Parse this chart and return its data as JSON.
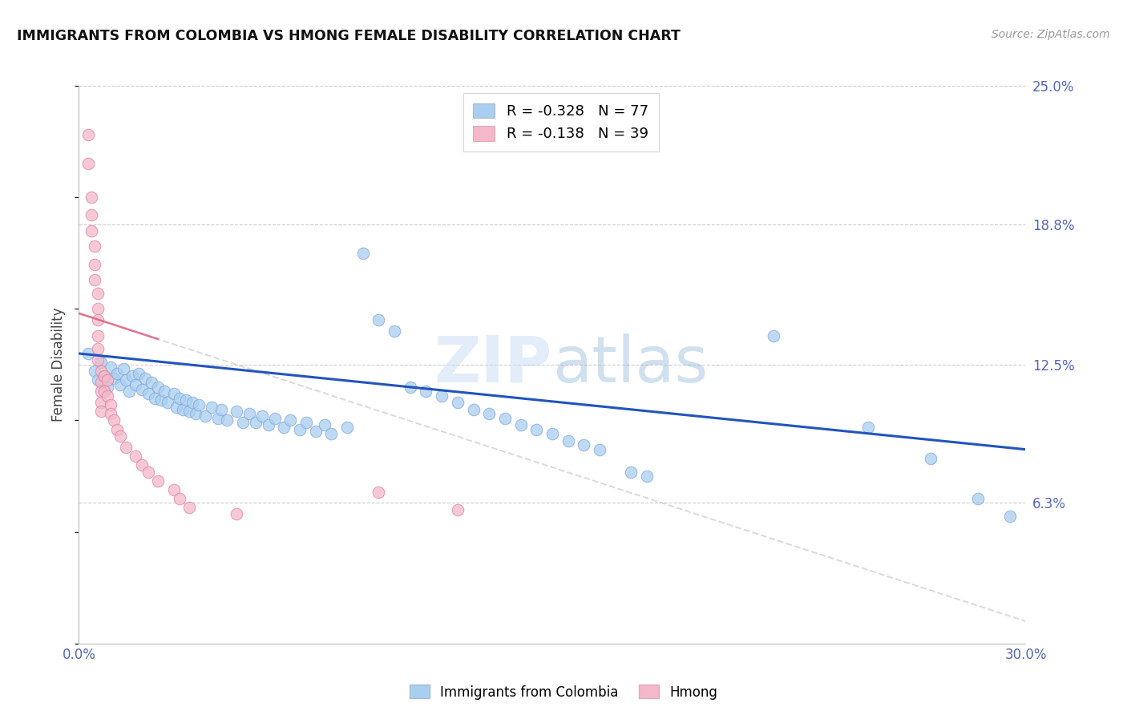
{
  "title": "IMMIGRANTS FROM COLOMBIA VS HMONG FEMALE DISABILITY CORRELATION CHART",
  "source": "Source: ZipAtlas.com",
  "ylabel": "Female Disability",
  "watermark": "ZIPatlas",
  "x_min": 0.0,
  "x_max": 0.3,
  "y_min": 0.0,
  "y_max": 0.25,
  "x_ticks": [
    0.0,
    0.05,
    0.1,
    0.15,
    0.2,
    0.25,
    0.3
  ],
  "y_tick_labels_right": [
    "6.3%",
    "12.5%",
    "18.8%",
    "25.0%"
  ],
  "y_ticks_right": [
    0.063,
    0.125,
    0.188,
    0.25
  ],
  "colombia_R": "-0.328",
  "colombia_N": "77",
  "hmong_R": "-0.138",
  "hmong_N": "39",
  "colombia_color": "#a8cef0",
  "hmong_color": "#f5b8c8",
  "colombia_line_color": "#2255bb",
  "hmong_line_color": "#cccccc",
  "colombia_scatter": [
    [
      0.003,
      0.13
    ],
    [
      0.005,
      0.122
    ],
    [
      0.006,
      0.118
    ],
    [
      0.007,
      0.126
    ],
    [
      0.008,
      0.12
    ],
    [
      0.009,
      0.115
    ],
    [
      0.01,
      0.124
    ],
    [
      0.011,
      0.119
    ],
    [
      0.012,
      0.121
    ],
    [
      0.013,
      0.116
    ],
    [
      0.014,
      0.123
    ],
    [
      0.015,
      0.118
    ],
    [
      0.016,
      0.113
    ],
    [
      0.017,
      0.12
    ],
    [
      0.018,
      0.116
    ],
    [
      0.019,
      0.121
    ],
    [
      0.02,
      0.114
    ],
    [
      0.021,
      0.119
    ],
    [
      0.022,
      0.112
    ],
    [
      0.023,
      0.117
    ],
    [
      0.024,
      0.11
    ],
    [
      0.025,
      0.115
    ],
    [
      0.026,
      0.109
    ],
    [
      0.027,
      0.113
    ],
    [
      0.028,
      0.108
    ],
    [
      0.03,
      0.112
    ],
    [
      0.031,
      0.106
    ],
    [
      0.032,
      0.11
    ],
    [
      0.033,
      0.105
    ],
    [
      0.034,
      0.109
    ],
    [
      0.035,
      0.104
    ],
    [
      0.036,
      0.108
    ],
    [
      0.037,
      0.103
    ],
    [
      0.038,
      0.107
    ],
    [
      0.04,
      0.102
    ],
    [
      0.042,
      0.106
    ],
    [
      0.044,
      0.101
    ],
    [
      0.045,
      0.105
    ],
    [
      0.047,
      0.1
    ],
    [
      0.05,
      0.104
    ],
    [
      0.052,
      0.099
    ],
    [
      0.054,
      0.103
    ],
    [
      0.056,
      0.099
    ],
    [
      0.058,
      0.102
    ],
    [
      0.06,
      0.098
    ],
    [
      0.062,
      0.101
    ],
    [
      0.065,
      0.097
    ],
    [
      0.067,
      0.1
    ],
    [
      0.07,
      0.096
    ],
    [
      0.072,
      0.099
    ],
    [
      0.075,
      0.095
    ],
    [
      0.078,
      0.098
    ],
    [
      0.08,
      0.094
    ],
    [
      0.085,
      0.097
    ],
    [
      0.09,
      0.175
    ],
    [
      0.095,
      0.145
    ],
    [
      0.1,
      0.14
    ],
    [
      0.105,
      0.115
    ],
    [
      0.11,
      0.113
    ],
    [
      0.115,
      0.111
    ],
    [
      0.12,
      0.108
    ],
    [
      0.125,
      0.105
    ],
    [
      0.13,
      0.103
    ],
    [
      0.135,
      0.101
    ],
    [
      0.14,
      0.098
    ],
    [
      0.145,
      0.096
    ],
    [
      0.15,
      0.094
    ],
    [
      0.155,
      0.091
    ],
    [
      0.16,
      0.089
    ],
    [
      0.165,
      0.087
    ],
    [
      0.175,
      0.077
    ],
    [
      0.18,
      0.075
    ],
    [
      0.22,
      0.138
    ],
    [
      0.25,
      0.097
    ],
    [
      0.27,
      0.083
    ],
    [
      0.285,
      0.065
    ],
    [
      0.295,
      0.057
    ]
  ],
  "hmong_scatter": [
    [
      0.003,
      0.228
    ],
    [
      0.003,
      0.215
    ],
    [
      0.004,
      0.2
    ],
    [
      0.004,
      0.192
    ],
    [
      0.004,
      0.185
    ],
    [
      0.005,
      0.178
    ],
    [
      0.005,
      0.17
    ],
    [
      0.005,
      0.163
    ],
    [
      0.006,
      0.157
    ],
    [
      0.006,
      0.15
    ],
    [
      0.006,
      0.145
    ],
    [
      0.006,
      0.138
    ],
    [
      0.006,
      0.132
    ],
    [
      0.006,
      0.127
    ],
    [
      0.007,
      0.122
    ],
    [
      0.007,
      0.117
    ],
    [
      0.007,
      0.113
    ],
    [
      0.007,
      0.108
    ],
    [
      0.007,
      0.104
    ],
    [
      0.008,
      0.12
    ],
    [
      0.008,
      0.113
    ],
    [
      0.009,
      0.118
    ],
    [
      0.009,
      0.111
    ],
    [
      0.01,
      0.107
    ],
    [
      0.01,
      0.103
    ],
    [
      0.011,
      0.1
    ],
    [
      0.012,
      0.096
    ],
    [
      0.013,
      0.093
    ],
    [
      0.015,
      0.088
    ],
    [
      0.018,
      0.084
    ],
    [
      0.02,
      0.08
    ],
    [
      0.022,
      0.077
    ],
    [
      0.025,
      0.073
    ],
    [
      0.03,
      0.069
    ],
    [
      0.032,
      0.065
    ],
    [
      0.035,
      0.061
    ],
    [
      0.05,
      0.058
    ],
    [
      0.095,
      0.068
    ],
    [
      0.12,
      0.06
    ]
  ],
  "colombia_line_x": [
    0.0,
    0.3
  ],
  "colombia_line_y": [
    0.13,
    0.087
  ],
  "hmong_line_x": [
    0.0,
    0.3
  ],
  "hmong_line_y": [
    0.148,
    0.01
  ]
}
